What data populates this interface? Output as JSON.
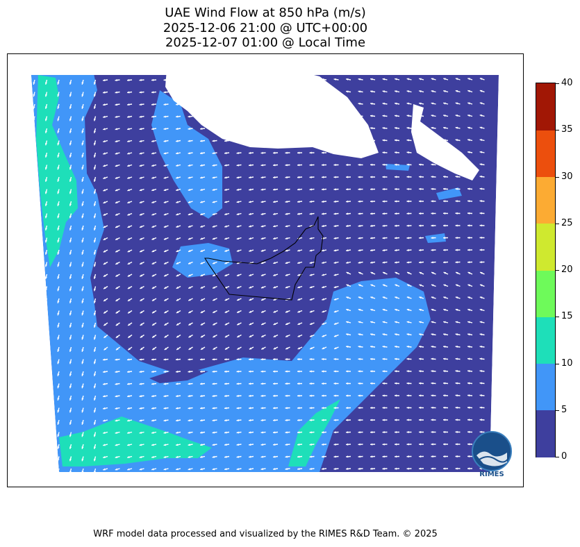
{
  "title": {
    "line1": "UAE Wind Flow at 850 hPa (m/s)",
    "line2": "2025-12-06 21:00 @ UTC+00:00",
    "line3": "2025-12-07 01:00 @ Local Time"
  },
  "colorbar": {
    "ticks": [
      "0",
      "5",
      "10",
      "15",
      "20",
      "25",
      "30",
      "35",
      "40"
    ],
    "colors": [
      "#3e3f9e",
      "#4196f8",
      "#1edfb9",
      "#6efa5a",
      "#cfe92f",
      "#fcab33",
      "#ec4f0d",
      "#a11705"
    ]
  },
  "colors": {
    "land_bg": "#3e3f9e",
    "wind_5_10": "#4196f8",
    "wind_10_15": "#1edfb9",
    "arrows": "#ffffff",
    "border": "#000000"
  },
  "logo": {
    "text": "RIMES"
  },
  "footer": "WRF model data processed and visualized by the RIMES R&D Team. © 2025"
}
